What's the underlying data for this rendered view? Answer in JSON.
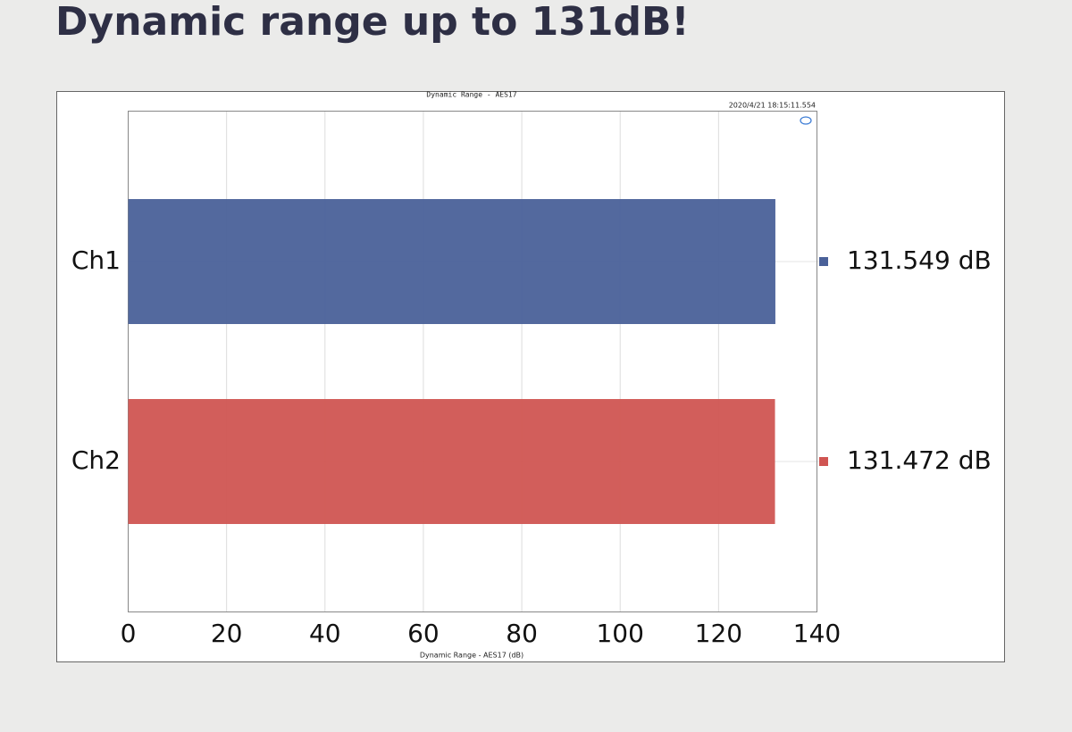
{
  "page_title": "Dynamic range up to 131dB!",
  "chart_data": {
    "type": "bar",
    "orientation": "horizontal",
    "title": "Dynamic Range - AES17",
    "timestamp": "2020/4/21 18:15:11.554",
    "x_label": "Dynamic Range - AES17 (dB)",
    "categories": [
      "Ch1",
      "Ch2"
    ],
    "series": [
      {
        "name": "Dynamic Range",
        "values": [
          131.549,
          131.472
        ],
        "value_labels": [
          "131.549 dB",
          "131.472 dB"
        ],
        "colors": [
          "#4a6199",
          "#d05552"
        ]
      }
    ],
    "xlim": [
      0,
      140
    ],
    "xticks": [
      0,
      20,
      40,
      60,
      80,
      100,
      120,
      140
    ],
    "grid": true
  }
}
